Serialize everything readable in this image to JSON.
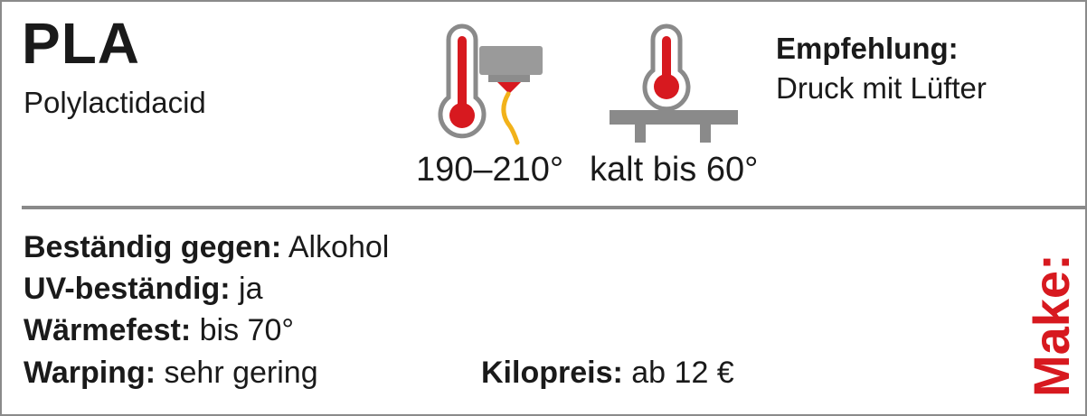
{
  "material": {
    "name": "PLA",
    "full_name": "Polylactidacid"
  },
  "icons": {
    "nozzle": "nozzle-thermometer-icon",
    "bed": "heated-bed-thermometer-icon"
  },
  "temperatures": {
    "nozzle": "190–210°",
    "bed": "kalt bis 60°"
  },
  "recommendation": {
    "label": "Empfehlung:",
    "value": "Druck mit Lüfter"
  },
  "properties": [
    {
      "label": "Beständig gegen:",
      "value": "Alkohol"
    },
    {
      "label": "UV-beständig:",
      "value": "ja"
    },
    {
      "label": "Wärmefest:",
      "value": "bis 70°"
    },
    {
      "label": "Warping:",
      "value": "sehr gering"
    }
  ],
  "price": {
    "label": "Kilopreis:",
    "value": "ab 12 €"
  },
  "logo_text": "Make:",
  "colors": {
    "accent": "#d7191f",
    "border": "#8a8a8a",
    "filament": "#f2b21a",
    "metal": "#9a9a9a"
  }
}
